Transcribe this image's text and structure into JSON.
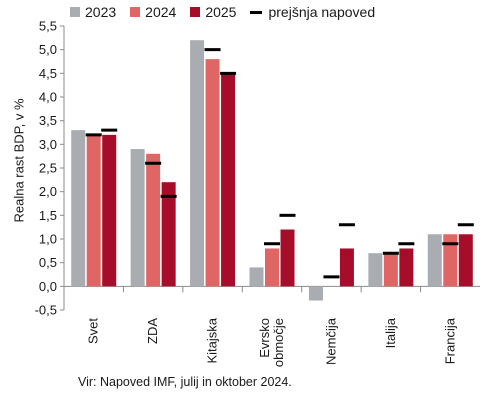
{
  "chart_data": {
    "type": "bar",
    "ylabel": "Realna rast BDP, v %",
    "ylim": [
      -0.5,
      5.5
    ],
    "yticks": [
      "-0,5",
      "0,0",
      "0,5",
      "1,0",
      "1,5",
      "2,0",
      "2,5",
      "3,0",
      "3,5",
      "4,0",
      "4,5",
      "5,0",
      "5,5"
    ],
    "categories": [
      "Svet",
      "ZDA",
      "Kitajska",
      "Evrsko območje",
      "Nemčija",
      "Italija",
      "Francija"
    ],
    "category_lines": [
      [
        "Svet"
      ],
      [
        "ZDA"
      ],
      [
        "Kitajska"
      ],
      [
        "Evrsko",
        "območje"
      ],
      [
        "Nemčija"
      ],
      [
        "Italija"
      ],
      [
        "Francija"
      ]
    ],
    "series": [
      {
        "name": "2023",
        "color": "#a9adb1",
        "values": [
          3.3,
          2.9,
          5.2,
          0.4,
          -0.3,
          0.7,
          1.1
        ]
      },
      {
        "name": "2024",
        "color": "#e06666",
        "values": [
          3.2,
          2.8,
          4.8,
          0.8,
          0.0,
          0.7,
          1.1
        ]
      },
      {
        "name": "2025",
        "color": "#a50d2a",
        "values": [
          3.2,
          2.2,
          4.5,
          1.2,
          0.8,
          0.8,
          1.1
        ]
      }
    ],
    "previous_forecast": {
      "name": "prejšnja napoved",
      "color": "#000000",
      "2024": [
        3.2,
        2.6,
        5.0,
        0.9,
        0.2,
        0.7,
        0.9
      ],
      "2025": [
        3.3,
        1.9,
        4.5,
        1.5,
        1.3,
        0.9,
        1.3
      ]
    },
    "legend_position": "top"
  },
  "legend": {
    "s2023": "2023",
    "s2024": "2024",
    "s2025": "2025",
    "prev": "prejšnja napoved"
  },
  "source": "Vir: Napoved IMF, julij in oktober 2024."
}
